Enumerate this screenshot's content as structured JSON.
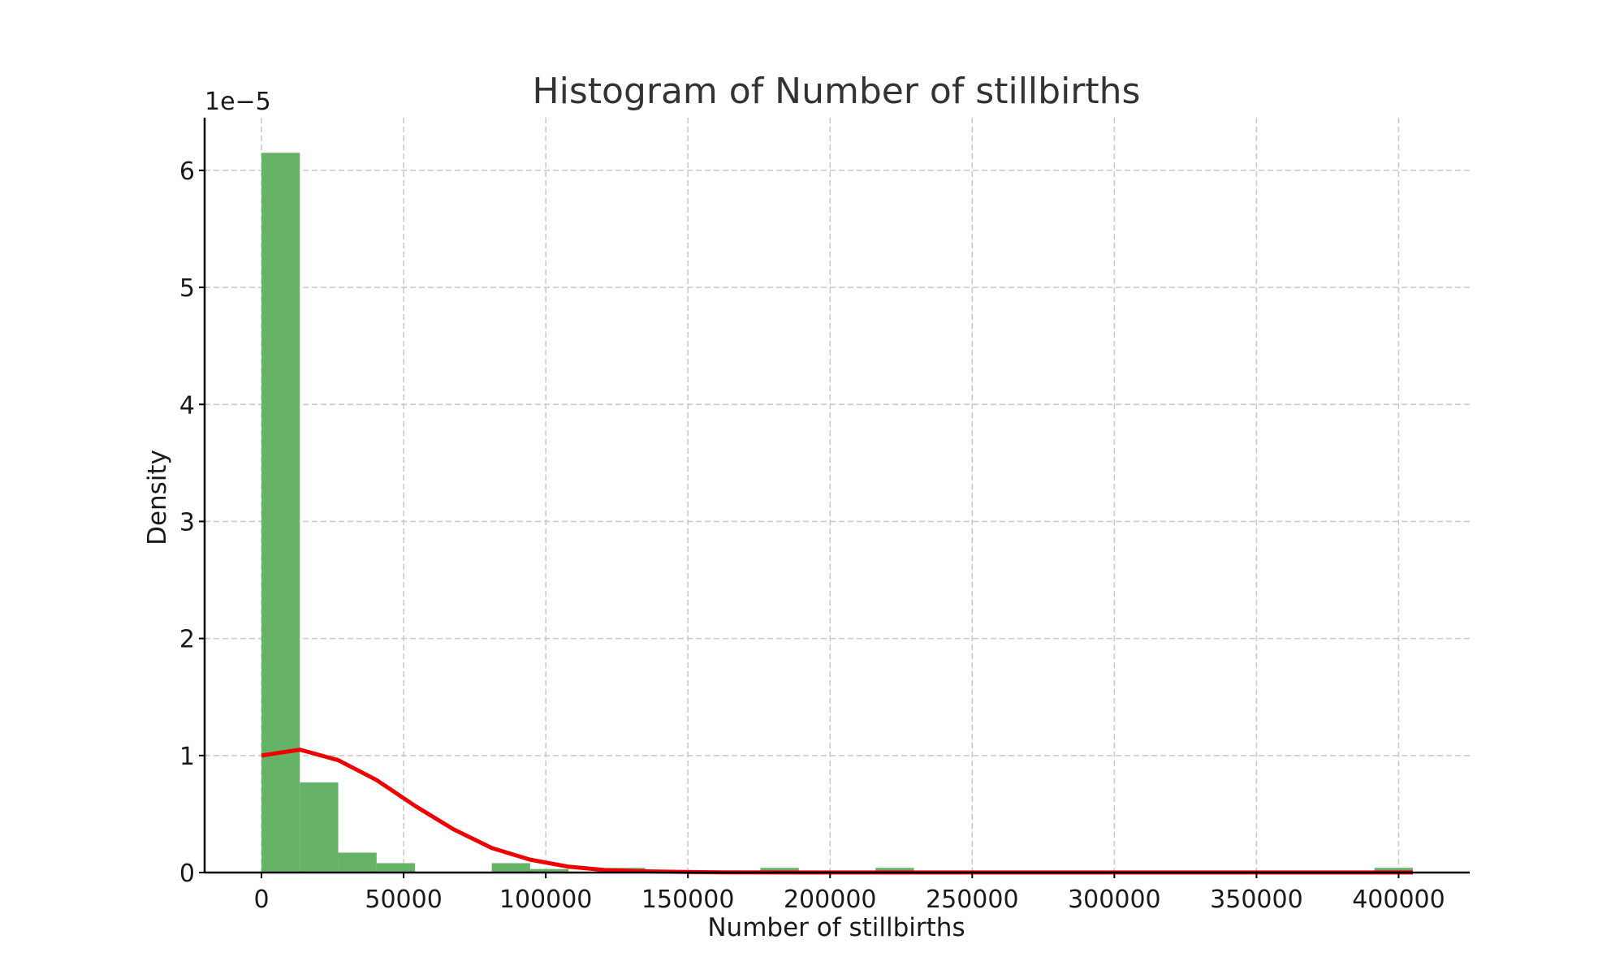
{
  "chart_data": {
    "type": "bar",
    "title": "Histogram of Number of stillbirths",
    "xlabel": "Number of stillbirths",
    "ylabel": "Density",
    "y_offset_label": "1e−5",
    "xlim": [
      -20000,
      425000
    ],
    "ylim": [
      0,
      6.45
    ],
    "x_ticks": [
      0,
      50000,
      100000,
      150000,
      200000,
      250000,
      300000,
      350000,
      400000
    ],
    "x_tick_labels": [
      "0",
      "50000",
      "100000",
      "150000",
      "200000",
      "250000",
      "300000",
      "350000",
      "400000"
    ],
    "y_ticks": [
      0,
      1,
      2,
      3,
      4,
      5,
      6
    ],
    "y_tick_labels": [
      "0",
      "1",
      "2",
      "3",
      "4",
      "5",
      "6"
    ],
    "grid": true,
    "bar_color": "#66b266",
    "line_color": "#ee0000",
    "histogram": {
      "name": "histogram",
      "bin_start": 0,
      "bin_width": 13500,
      "values": [
        6.15,
        0.77,
        0.17,
        0.08,
        0,
        0,
        0.08,
        0.03,
        0,
        0.04,
        0,
        0,
        0,
        0.04,
        0,
        0,
        0.04,
        0,
        0,
        0,
        0,
        0,
        0,
        0,
        0,
        0,
        0,
        0,
        0,
        0.04
      ]
    },
    "density_curve": {
      "name": "density",
      "x": [
        0,
        13500,
        27000,
        40500,
        54000,
        67500,
        81000,
        94500,
        108000,
        121500,
        135000,
        148500,
        162000,
        189000,
        216000,
        270000,
        324000,
        378000,
        405000
      ],
      "y": [
        1.0,
        1.05,
        0.96,
        0.79,
        0.57,
        0.37,
        0.21,
        0.11,
        0.05,
        0.02,
        0.01,
        0.005,
        0.002,
        0.001,
        0.001,
        0.001,
        0.001,
        0.001,
        0.001
      ]
    }
  }
}
